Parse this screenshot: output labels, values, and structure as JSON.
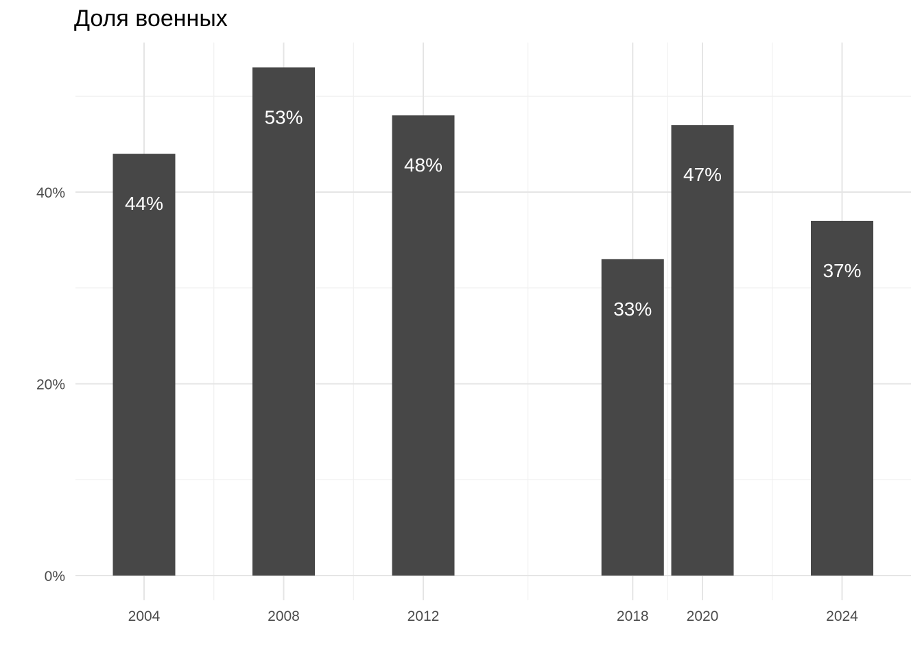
{
  "chart_data": {
    "type": "bar",
    "title": "Доля военных",
    "xlabel": "",
    "ylabel": "",
    "x": [
      2004,
      2008,
      2012,
      2018,
      2020,
      2024
    ],
    "x_tick_labels": [
      "2004",
      "2008",
      "2012",
      "2018",
      "2020",
      "2024"
    ],
    "values": [
      0.44,
      0.53,
      0.48,
      0.33,
      0.47,
      0.37
    ],
    "data_labels": [
      "44%",
      "53%",
      "48%",
      "33%",
      "47%",
      "37%"
    ],
    "y_ticks": [
      0,
      0.2,
      0.4
    ],
    "y_tick_labels": [
      "0%",
      "20%",
      "40%"
    ],
    "ylim": [
      0,
      0.555
    ],
    "xlim": [
      2002,
      2026
    ],
    "grid": true,
    "legend": "none",
    "colors": {
      "bar": "#474747",
      "grid_major": "#e5e5e5",
      "grid_minor": "#f0f0f0",
      "data_label": "#ffffff",
      "tick_label": "#4d4d4d",
      "title": "#000000"
    }
  }
}
